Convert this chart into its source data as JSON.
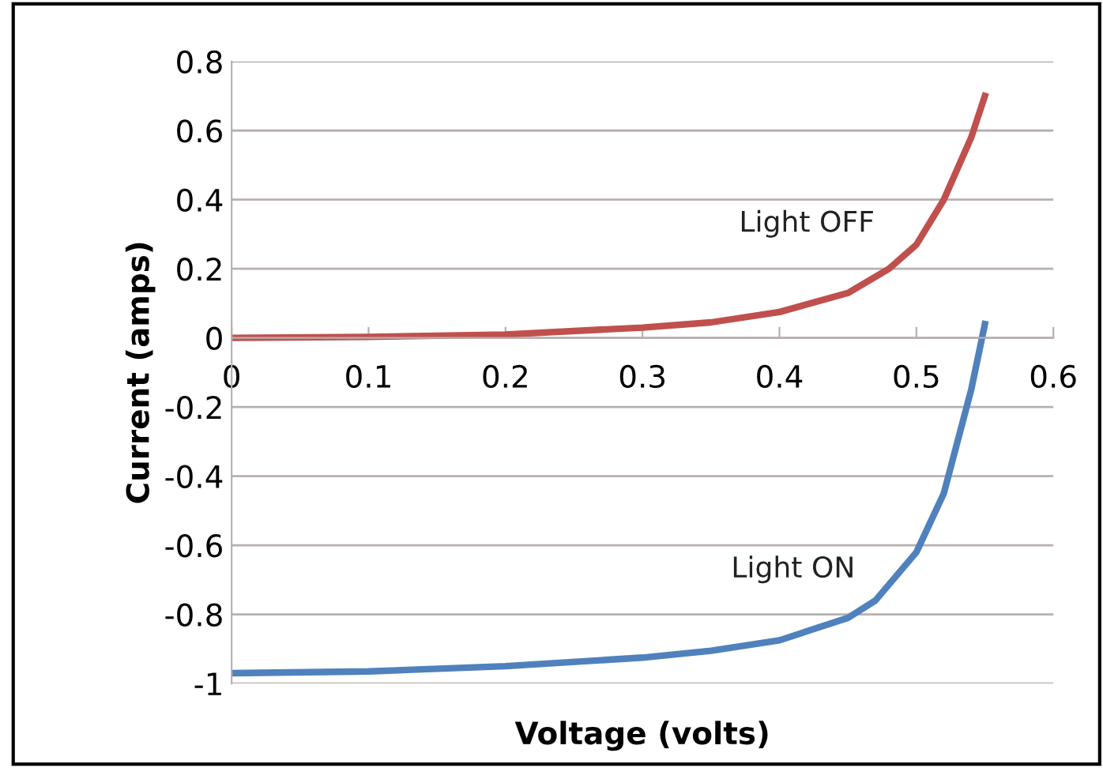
{
  "chart_data": {
    "type": "line",
    "xlabel": "Voltage (volts)",
    "ylabel": "Current (amps)",
    "xlim": [
      0,
      0.6
    ],
    "xticks": [
      0,
      0.1,
      0.2,
      0.3,
      0.4,
      0.5,
      0.6
    ],
    "ylim": [
      -1,
      0.8
    ],
    "yticks": [
      -1,
      -0.8,
      -0.6,
      -0.4,
      -0.2,
      0,
      0.2,
      0.4,
      0.6,
      0.8
    ],
    "grid": "y",
    "marker": "none",
    "line_style": "solid",
    "series": [
      {
        "name": "Light OFF",
        "color": "#c0504d",
        "x": [
          0,
          0.1,
          0.2,
          0.3,
          0.35,
          0.4,
          0.45,
          0.48,
          0.5,
          0.52,
          0.54,
          0.55
        ],
        "values": [
          0,
          0.003,
          0.01,
          0.03,
          0.045,
          0.075,
          0.13,
          0.2,
          0.27,
          0.4,
          0.58,
          0.7
        ]
      },
      {
        "name": "Light ON",
        "color": "#4f81bd",
        "x": [
          0,
          0.1,
          0.2,
          0.3,
          0.35,
          0.4,
          0.45,
          0.47,
          0.5,
          0.52,
          0.54,
          0.55
        ],
        "values": [
          -0.97,
          -0.965,
          -0.95,
          -0.925,
          -0.905,
          -0.875,
          -0.81,
          -0.76,
          -0.62,
          -0.45,
          -0.15,
          0.04
        ]
      }
    ]
  }
}
